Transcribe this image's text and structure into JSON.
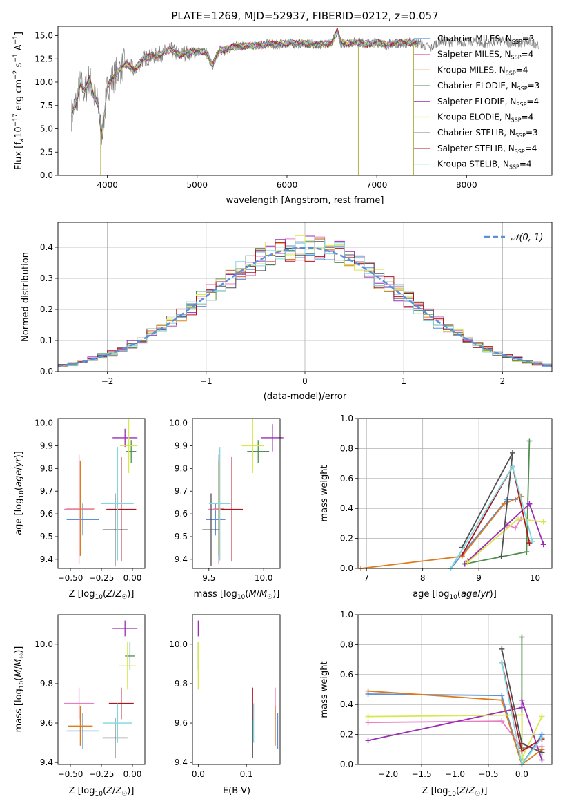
{
  "colors": {
    "Chabrier MILES": "#5b8fd8",
    "Salpeter MILES": "#e67fc4",
    "Kroupa MILES": "#e07b1c",
    "Chabrier ELODIE": "#4f8f4f",
    "Salpeter ELODIE": "#9a2db4",
    "Kroupa ELODIE": "#d8e84a",
    "Chabrier STELIB": "#505050",
    "Salpeter STELIB": "#b0141c",
    "Kroupa STELIB": "#7ed8e0"
  },
  "chart_data": [
    {
      "id": "spectrum",
      "type": "line",
      "title": "PLATE=1269, MJD=52937, FIBERID=0212, z=0.057",
      "xlabel": "wavelength [Angstrom, rest frame]",
      "ylabel": "Flux [f_λ 10^-17 erg cm^-2 s^-1 A^-1]",
      "xlim": [
        3450,
        8950
      ],
      "ylim": [
        0,
        16
      ],
      "xticks": [
        4000,
        5000,
        6000,
        7000,
        8000
      ],
      "yticks": [
        0.0,
        2.5,
        5.0,
        7.5,
        10.0,
        12.5,
        15.0
      ],
      "data_series": {
        "name": "data",
        "x": [
          3600,
          3650,
          3700,
          3750,
          3800,
          3850,
          3900,
          3930,
          3960,
          4000,
          4100,
          4200,
          4300,
          4400,
          4500,
          4600,
          4700,
          4800,
          4900,
          5000,
          5100,
          5170,
          5250,
          5300,
          5400,
          5500,
          5600,
          5700,
          5800,
          5900,
          6000,
          6100,
          6200,
          6300,
          6400,
          6500,
          6563,
          6600,
          6700,
          6800,
          6900,
          7000,
          7100,
          7200,
          7300,
          7400,
          7500,
          7600,
          7700,
          7800,
          7900,
          8000,
          8100,
          8200,
          8300,
          8400,
          8500,
          8600,
          8700,
          8800
        ],
        "y": [
          6.5,
          7.8,
          9.8,
          9.0,
          10.5,
          8.5,
          7.5,
          4.5,
          6.0,
          9.5,
          11.0,
          12.0,
          11.3,
          12.5,
          12.8,
          13.0,
          13.5,
          12.9,
          13.2,
          13.3,
          13.2,
          11.8,
          13.5,
          13.4,
          13.8,
          13.9,
          13.9,
          14.0,
          14.1,
          14.0,
          14.2,
          14.1,
          14.2,
          14.0,
          14.1,
          14.2,
          15.5,
          14.2,
          14.2,
          14.3,
          14.1,
          14.3,
          14.0,
          14.2,
          14.2,
          14.3,
          14.1,
          13.6,
          14.5,
          14.3,
          14.4,
          14.3,
          14.4,
          14.1,
          14.3,
          14.4,
          14.2,
          14.1,
          14.3,
          14.1
        ]
      },
      "series": [
        {
          "name": "Chabrier MILES, N_SSP=3",
          "label_main": "Chabrier MILES, N",
          "label_sub": "SSP",
          "label_end": "=3"
        },
        {
          "name": "Salpeter MILES, N_SSP=4",
          "label_main": "Salpeter MILES, N",
          "label_sub": "SSP",
          "label_end": "=4"
        },
        {
          "name": "Kroupa MILES, N_SSP=4",
          "label_main": "Kroupa MILES, N",
          "label_sub": "SSP",
          "label_end": "=4"
        },
        {
          "name": "Chabrier ELODIE, N_SSP=3",
          "label_main": "Chabrier ELODIE, N",
          "label_sub": "SSP",
          "label_end": "=3"
        },
        {
          "name": "Salpeter ELODIE, N_SSP=4",
          "label_main": "Salpeter ELODIE, N",
          "label_sub": "SSP",
          "label_end": "=4"
        },
        {
          "name": "Kroupa ELODIE, N_SSP=4",
          "label_main": "Kroupa ELODIE, N",
          "label_sub": "SSP",
          "label_end": "=4"
        },
        {
          "name": "Chabrier STELIB, N_SSP=3",
          "label_main": "Chabrier STELIB, N",
          "label_sub": "SSP",
          "label_end": "=3"
        },
        {
          "name": "Salpeter STELIB, N_SSP=4",
          "label_main": "Salpeter STELIB, N",
          "label_sub": "SSP",
          "label_end": "=4"
        },
        {
          "name": "Kroupa STELIB, N_SSP=4",
          "label_main": "Kroupa STELIB, N",
          "label_sub": "SSP",
          "label_end": "=4"
        }
      ],
      "legend": "upper right"
    },
    {
      "id": "residuals",
      "type": "histogram",
      "xlabel": "(data-model)/error",
      "ylabel": "Normed distribution",
      "xlim": [
        -2.5,
        2.5
      ],
      "ylim": [
        0,
        0.48
      ],
      "xticks": [
        -2,
        -1,
        0,
        1,
        2
      ],
      "yticks": [
        0.0,
        0.1,
        0.2,
        0.3,
        0.4
      ],
      "grid": true,
      "bin_width": 0.1,
      "reference_series": {
        "name": "N(0,1)",
        "label": "𝒩(0, 1)",
        "style": "dashed"
      },
      "legend": "upper right"
    },
    {
      "id": "age_vs_Z",
      "type": "errorbar",
      "xlabel": "Z [log10(Z/Z☉)]",
      "ylabel": "age [log10(age/yr)]",
      "xlim": [
        -0.6,
        0.1
      ],
      "ylim": [
        9.36,
        10.02
      ],
      "xticks": [
        -0.5,
        -0.25,
        0.0
      ],
      "xtick_labels": [
        "−0.50",
        "−0.25",
        "0.00"
      ],
      "yticks": [
        9.4,
        9.5,
        9.6,
        9.7,
        9.8,
        9.9,
        10.0
      ],
      "points": [
        {
          "model": "Chabrier MILES",
          "x": -0.4,
          "xerr": 0.13,
          "y": 9.575,
          "yerr": 0.07
        },
        {
          "model": "Salpeter MILES",
          "x": -0.43,
          "xerr": 0.12,
          "y": 9.62,
          "yerr": 0.24
        },
        {
          "model": "Kroupa MILES",
          "x": -0.42,
          "xerr": 0.12,
          "y": 9.625,
          "yerr": 0.21
        },
        {
          "model": "Chabrier ELODIE",
          "x": -0.01,
          "xerr": 0.04,
          "y": 9.875,
          "yerr": 0.05
        },
        {
          "model": "Salpeter ELODIE",
          "x": -0.06,
          "xerr": 0.1,
          "y": 9.935,
          "yerr": 0.04
        },
        {
          "model": "Kroupa ELODIE",
          "x": -0.03,
          "xerr": 0.07,
          "y": 9.9,
          "yerr": 0.12
        },
        {
          "model": "Chabrier STELIB",
          "x": -0.14,
          "xerr": 0.1,
          "y": 9.53,
          "yerr": 0.16
        },
        {
          "model": "Salpeter STELIB",
          "x": -0.09,
          "xerr": 0.12,
          "y": 9.62,
          "yerr": 0.23
        },
        {
          "model": "Kroupa STELIB",
          "x": -0.12,
          "xerr": 0.13,
          "y": 9.645,
          "yerr": 0.25
        }
      ]
    },
    {
      "id": "age_vs_mass",
      "type": "errorbar",
      "xlabel": "mass [log10(M/M☉)]",
      "ylabel": "",
      "xlim": [
        9.35,
        10.15
      ],
      "ylim": [
        9.36,
        10.02
      ],
      "xticks": [
        9.5,
        10.0
      ],
      "yticks": [
        9.4,
        9.5,
        9.6,
        9.7,
        9.8,
        9.9,
        10.0
      ],
      "points": [
        {
          "model": "Chabrier MILES",
          "x": 9.56,
          "xerr": 0.09,
          "y": 9.575,
          "yerr": 0.07
        },
        {
          "model": "Salpeter MILES",
          "x": 9.59,
          "xerr": 0.1,
          "y": 9.62,
          "yerr": 0.24
        },
        {
          "model": "Kroupa MILES",
          "x": 9.59,
          "xerr": 0.05,
          "y": 9.625,
          "yerr": 0.21
        },
        {
          "model": "Chabrier ELODIE",
          "x": 9.95,
          "xerr": 0.1,
          "y": 9.875,
          "yerr": 0.05
        },
        {
          "model": "Salpeter ELODIE",
          "x": 10.08,
          "xerr": 0.1,
          "y": 9.935,
          "yerr": 0.06
        },
        {
          "model": "Kroupa ELODIE",
          "x": 9.9,
          "xerr": 0.1,
          "y": 9.9,
          "yerr": 0.12
        },
        {
          "model": "Chabrier STELIB",
          "x": 9.52,
          "xerr": 0.08,
          "y": 9.53,
          "yerr": 0.16
        },
        {
          "model": "Salpeter STELIB",
          "x": 9.71,
          "xerr": 0.1,
          "y": 9.62,
          "yerr": 0.23
        },
        {
          "model": "Kroupa STELIB",
          "x": 9.6,
          "xerr": 0.1,
          "y": 9.645,
          "yerr": 0.25
        }
      ]
    },
    {
      "id": "weight_vs_age",
      "type": "line",
      "xlabel": "age [log10(age/yr)]",
      "ylabel": "mass weight",
      "xlim": [
        6.85,
        10.3
      ],
      "ylim": [
        0,
        1
      ],
      "xticks": [
        7,
        8,
        9,
        10
      ],
      "yticks": [
        0.0,
        0.2,
        0.4,
        0.6,
        0.8,
        1.0
      ],
      "grid": true,
      "series": [
        {
          "model": "Chabrier MILES",
          "x": [
            8.5,
            9.5,
            9.65
          ],
          "y": [
            0.0,
            0.46,
            0.46
          ]
        },
        {
          "model": "Salpeter MILES",
          "x": [
            8.8,
            9.5,
            9.65,
            9.75
          ],
          "y": [
            0.05,
            0.29,
            0.27,
            0.33
          ]
        },
        {
          "model": "Kroupa MILES",
          "x": [
            6.9,
            8.7,
            9.45,
            9.75
          ],
          "y": [
            0.0,
            0.08,
            0.43,
            0.48
          ]
        },
        {
          "model": "Chabrier ELODIE",
          "x": [
            8.75,
            9.85,
            9.9
          ],
          "y": [
            0.03,
            0.11,
            0.85
          ]
        },
        {
          "model": "Salpeter ELODIE",
          "x": [
            8.75,
            9.9,
            10.15
          ],
          "y": [
            0.03,
            0.43,
            0.16
          ]
        },
        {
          "model": "Kroupa ELODIE",
          "x": [
            8.8,
            9.7,
            10.15
          ],
          "y": [
            0.04,
            0.33,
            0.31
          ]
        },
        {
          "model": "Chabrier STELIB",
          "x": [
            8.7,
            9.6,
            9.4
          ],
          "y": [
            0.14,
            0.77,
            0.08
          ]
        },
        {
          "model": "Salpeter STELIB",
          "x": [
            8.7,
            9.6,
            9.9
          ],
          "y": [
            0.09,
            0.68,
            0.17
          ]
        },
        {
          "model": "Kroupa STELIB",
          "x": [
            8.5,
            9.6,
            9.95
          ],
          "y": [
            0.0,
            0.68,
            0.18
          ]
        }
      ]
    },
    {
      "id": "mass_vs_Z",
      "type": "errorbar",
      "xlabel": "Z [log10(Z/Z☉)]",
      "ylabel": "mass [log10(M/M☉)]",
      "xlim": [
        -0.6,
        0.1
      ],
      "ylim": [
        9.39,
        10.15
      ],
      "xticks": [
        -0.5,
        -0.25,
        0.0
      ],
      "xtick_labels": [
        "−0.50",
        "−0.25",
        "0.00"
      ],
      "yticks": [
        9.4,
        9.6,
        9.8,
        10.0
      ],
      "points": [
        {
          "model": "Chabrier MILES",
          "x": -0.4,
          "xerr": 0.13,
          "y": 9.56,
          "yerr": 0.09
        },
        {
          "model": "Salpeter MILES",
          "x": -0.43,
          "xerr": 0.12,
          "y": 9.7,
          "yerr": 0.08
        },
        {
          "model": "Kroupa MILES",
          "x": -0.42,
          "xerr": 0.1,
          "y": 9.585,
          "yerr": 0.1
        },
        {
          "model": "Chabrier ELODIE",
          "x": -0.02,
          "xerr": 0.04,
          "y": 9.94,
          "yerr": 0.07
        },
        {
          "model": "Salpeter ELODIE",
          "x": -0.06,
          "xerr": 0.1,
          "y": 10.08,
          "yerr": 0.04
        },
        {
          "model": "Kroupa ELODIE",
          "x": -0.04,
          "xerr": 0.07,
          "y": 9.89,
          "yerr": 0.12
        },
        {
          "model": "Chabrier STELIB",
          "x": -0.14,
          "xerr": 0.1,
          "y": 9.525,
          "yerr": 0.1
        },
        {
          "model": "Salpeter STELIB",
          "x": -0.09,
          "xerr": 0.1,
          "y": 9.7,
          "yerr": 0.08
        },
        {
          "model": "Kroupa STELIB",
          "x": -0.12,
          "xerr": 0.12,
          "y": 9.6,
          "yerr": 0.1
        }
      ]
    },
    {
      "id": "mass_vs_ebv",
      "type": "errorbar",
      "xlabel": "E(B-V)",
      "ylabel": "",
      "xlim": [
        -0.012,
        0.17
      ],
      "ylim": [
        9.39,
        10.15
      ],
      "xticks": [
        0.0,
        0.1
      ],
      "yticks": [
        9.4,
        9.6,
        9.8,
        10.0
      ],
      "points": [
        {
          "model": "Chabrier MILES",
          "x": 0.165,
          "y": 9.56,
          "yerr": 0.09
        },
        {
          "model": "Salpeter MILES",
          "x": 0.16,
          "y": 9.7,
          "yerr": 0.08
        },
        {
          "model": "Kroupa MILES",
          "x": 0.16,
          "y": 9.585,
          "yerr": 0.1
        },
        {
          "model": "Chabrier ELODIE",
          "x": 0.0,
          "y": 9.94,
          "yerr": 0.07
        },
        {
          "model": "Salpeter ELODIE",
          "x": 0.0,
          "y": 10.08,
          "yerr": 0.04
        },
        {
          "model": "Kroupa ELODIE",
          "x": 0.0,
          "y": 9.89,
          "yerr": 0.12
        },
        {
          "model": "Chabrier STELIB",
          "x": 0.113,
          "y": 9.525,
          "yerr": 0.1
        },
        {
          "model": "Salpeter STELIB",
          "x": 0.113,
          "y": 9.7,
          "yerr": 0.08
        },
        {
          "model": "Kroupa STELIB",
          "x": 0.115,
          "y": 9.6,
          "yerr": 0.1
        }
      ]
    },
    {
      "id": "weight_vs_Z",
      "type": "line",
      "xlabel": "Z [log10(Z/Z☉)]",
      "ylabel": "mass weight",
      "xlim": [
        -2.45,
        0.45
      ],
      "ylim": [
        0,
        1
      ],
      "xticks": [
        -2.0,
        -1.5,
        -1.0,
        -0.5,
        0.0
      ],
      "xtick_labels": [
        "−2.0",
        "−1.5",
        "−1.0",
        "−0.5",
        "0.0"
      ],
      "yticks": [
        0.0,
        0.2,
        0.4,
        0.6,
        0.8,
        1.0
      ],
      "grid": true,
      "series": [
        {
          "model": "Chabrier MILES",
          "x": [
            -2.3,
            -0.3,
            0.0,
            0.3
          ],
          "y": [
            0.47,
            0.46,
            0.0,
            0.2
          ]
        },
        {
          "model": "Salpeter MILES",
          "x": [
            -2.3,
            -0.3,
            0.0,
            0.3
          ],
          "y": [
            0.28,
            0.29,
            0.11,
            0.12
          ]
        },
        {
          "model": "Kroupa MILES",
          "x": [
            -2.3,
            -0.3,
            0.0,
            0.3
          ],
          "y": [
            0.49,
            0.43,
            0.0,
            0.1
          ]
        },
        {
          "model": "Chabrier ELODIE",
          "x": [
            0.0,
            0.0,
            0.0
          ],
          "y": [
            0.85,
            0.03,
            0.11
          ]
        },
        {
          "model": "Salpeter ELODIE",
          "x": [
            -2.3,
            0.0,
            0.0,
            0.3
          ],
          "y": [
            0.16,
            0.38,
            0.43,
            0.03
          ]
        },
        {
          "model": "Kroupa ELODIE",
          "x": [
            -2.3,
            0.0,
            0.0,
            0.3
          ],
          "y": [
            0.32,
            0.33,
            0.04,
            0.32
          ]
        },
        {
          "model": "Chabrier STELIB",
          "x": [
            -0.3,
            0.0,
            0.3
          ],
          "y": [
            0.77,
            0.14,
            0.08
          ]
        },
        {
          "model": "Salpeter STELIB",
          "x": [
            -0.3,
            0.0,
            0.3
          ],
          "y": [
            0.68,
            0.09,
            0.17
          ]
        },
        {
          "model": "Kroupa STELIB",
          "x": [
            -0.3,
            0.0,
            0.3
          ],
          "y": [
            0.68,
            0.0,
            0.18
          ]
        }
      ]
    }
  ]
}
